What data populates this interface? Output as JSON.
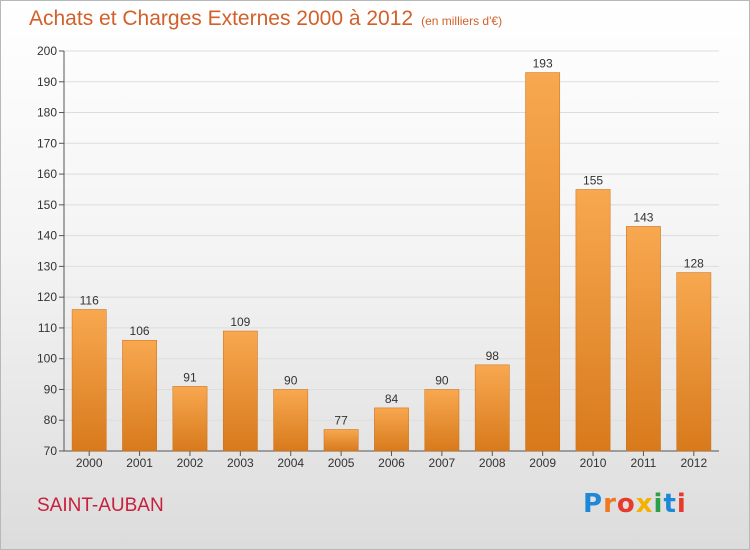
{
  "header": {
    "title": "Achats et Charges Externes 2000 à 2012",
    "subtitle": "(en milliers d'€)"
  },
  "footer": {
    "town": "SAINT-AUBAN",
    "logo_text": "Proxiti",
    "logo_colors": [
      "#1e88d8",
      "#f07820",
      "#e83a2c",
      "#f5b000",
      "#2ca048",
      "#1e88d8",
      "#e83a2c"
    ]
  },
  "colors": {
    "bar_light": "#f8a850",
    "bar_dark": "#d87a1c",
    "grid": "#dddddd",
    "axis": "#555555"
  },
  "chart_data": {
    "type": "bar",
    "categories": [
      "2000",
      "2001",
      "2002",
      "2003",
      "2004",
      "2005",
      "2006",
      "2007",
      "2008",
      "2009",
      "2010",
      "2011",
      "2012"
    ],
    "values": [
      116,
      106,
      91,
      109,
      90,
      77,
      84,
      90,
      98,
      193,
      155,
      143,
      128
    ],
    "title": "Achats et Charges Externes 2000 à 2012",
    "subtitle": "(en milliers d'€)",
    "xlabel": "",
    "ylabel": "",
    "ylim": [
      70,
      200
    ],
    "yticks": [
      70,
      80,
      90,
      100,
      110,
      120,
      130,
      140,
      150,
      160,
      170,
      180,
      190,
      200
    ],
    "grid": true,
    "legend": "none"
  }
}
